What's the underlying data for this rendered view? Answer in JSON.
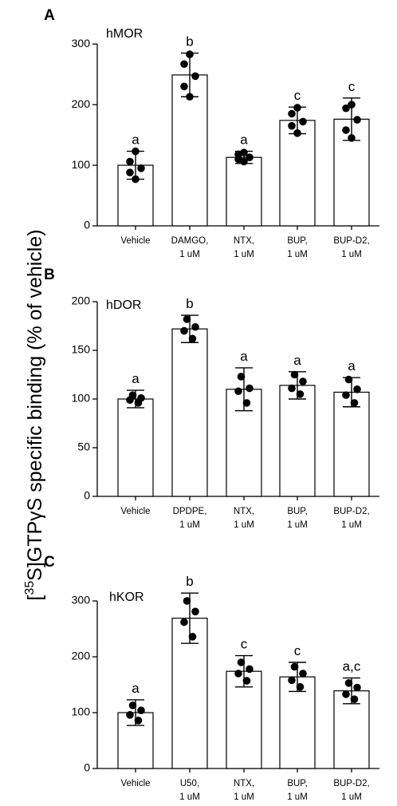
{
  "figure": {
    "ylabel_prefix": "[",
    "ylabel_sup": "35",
    "ylabel_rest": "S]GTPγS specific binding  (% of vehicle)"
  },
  "chart_data": [
    {
      "type": "bar",
      "panel_letter": "A",
      "receptor_label": "hMOR",
      "categories": [
        [
          "Vehicle"
        ],
        [
          "DAMGO,",
          "1 uM"
        ],
        [
          "NTX,",
          "1 uM"
        ],
        [
          "BUP,",
          "1 uM"
        ],
        [
          "BUP-D2,",
          "1 uM"
        ]
      ],
      "values": [
        100,
        249,
        113,
        174,
        176
      ],
      "error_sd": [
        23,
        36,
        10,
        22,
        35
      ],
      "points": [
        [
          123,
          106,
          95,
          88,
          77
        ],
        [
          283,
          267,
          247,
          230,
          213
        ],
        [
          121,
          118,
          113,
          110,
          106
        ],
        [
          195,
          185,
          172,
          165,
          153
        ],
        [
          200,
          194,
          175,
          158,
          145
        ]
      ],
      "significance_letters": [
        "a",
        "b",
        "a",
        "c",
        "c"
      ],
      "yticks": [
        0,
        100,
        200,
        300
      ],
      "ylim": [
        0,
        320
      ]
    },
    {
      "type": "bar",
      "panel_letter": "B",
      "receptor_label": "hDOR",
      "categories": [
        [
          "Vehicle"
        ],
        [
          "DPDPE,",
          "1 uM"
        ],
        [
          "NTX,",
          "1 uM"
        ],
        [
          "BUP,",
          "1 uM"
        ],
        [
          "BUP-D2,",
          "1 uM"
        ]
      ],
      "values": [
        100,
        172,
        110,
        114,
        107
      ],
      "error_sd": [
        9,
        14,
        22,
        14,
        15
      ],
      "points": [
        [
          104,
          101,
          99,
          96
        ],
        [
          182,
          174,
          170,
          162
        ],
        [
          123,
          111,
          108,
          96
        ],
        [
          125,
          118,
          111,
          105
        ],
        [
          120,
          110,
          104,
          96
        ]
      ],
      "significance_letters": [
        "a",
        "b",
        "a",
        "a",
        "a"
      ],
      "yticks": [
        0,
        50,
        100,
        150,
        200
      ],
      "ylim": [
        0,
        200
      ]
    },
    {
      "type": "bar",
      "panel_letter": "C",
      "receptor_label": "hKOR",
      "categories": [
        [
          "Vehicle"
        ],
        [
          "U50,",
          "1 uM"
        ],
        [
          "NTX,",
          "1 uM"
        ],
        [
          "BUP,",
          "1 uM"
        ],
        [
          "BUP-D2,",
          "1 uM"
        ]
      ],
      "values": [
        100,
        269,
        174,
        164,
        139
      ],
      "error_sd": [
        23,
        45,
        28,
        26,
        23
      ],
      "points": [
        [
          113,
          104,
          96,
          86
        ],
        [
          300,
          281,
          262,
          236
        ],
        [
          190,
          178,
          170,
          157
        ],
        [
          182,
          170,
          158,
          146
        ],
        [
          153,
          145,
          133,
          124
        ]
      ],
      "significance_letters": [
        "a",
        "b",
        "c",
        "c",
        "a,c"
      ],
      "yticks": [
        0,
        100,
        200,
        300
      ],
      "ylim": [
        0,
        350
      ]
    }
  ]
}
